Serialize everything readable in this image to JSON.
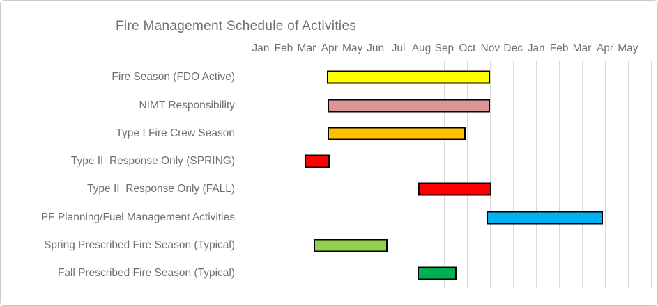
{
  "card": {
    "background": "#ffffff",
    "border_color": "#c9c9c9"
  },
  "chart_data": {
    "type": "gantt",
    "title": "Fire Management Schedule of Activities",
    "x_axis": {
      "tick_labels": [
        "Jan",
        "Feb",
        "Mar",
        "Apr",
        "May",
        "Jun",
        "Jul",
        "Aug",
        "Sep",
        "Oct",
        "Nov",
        "Dec",
        "Jan",
        "Feb",
        "Mar",
        "Apr",
        "May"
      ],
      "unit": "month",
      "axis_note": "17 monthly ticks spanning Jan-Dec plus Jan-May of the following year; month offsets below are measured where 0 = first Jan tick and 16 = final May tick",
      "gridlines": true
    },
    "tasks": [
      {
        "label": "Fire Season (FDO Active)",
        "start_month": 2.88,
        "end_month": 9.86,
        "color": "#FFFF00"
      },
      {
        "label": "NIMT Responsibility",
        "start_month": 2.9,
        "end_month": 9.86,
        "color": "#D99694"
      },
      {
        "label": "Type I Fire Crew Season",
        "start_month": 2.9,
        "end_month": 8.81,
        "color": "#FFC000"
      },
      {
        "label": "Type II  Response Only (SPRING)",
        "start_month": 1.91,
        "end_month": 2.9,
        "color": "#FF0000"
      },
      {
        "label": "Type II  Response Only (FALL)",
        "start_month": 6.87,
        "end_month": 9.94,
        "color": "#FF0000"
      },
      {
        "label": "PF Planning/Fuel Management Activities",
        "start_month": 9.84,
        "end_month": 14.78,
        "color": "#00B0F0"
      },
      {
        "label": "Spring Prescribed Fire Season (Typical)",
        "start_month": 2.32,
        "end_month": 5.41,
        "color": "#92D050"
      },
      {
        "label": "Fall Prescribed Fire Season (Typical)",
        "start_month": 6.84,
        "end_month": 8.42,
        "color": "#00B050"
      }
    ],
    "bar_border_color": "#000000",
    "gridline_color": "#d9d9d9",
    "text_color": "#6f6f6f",
    "legend": "none"
  }
}
